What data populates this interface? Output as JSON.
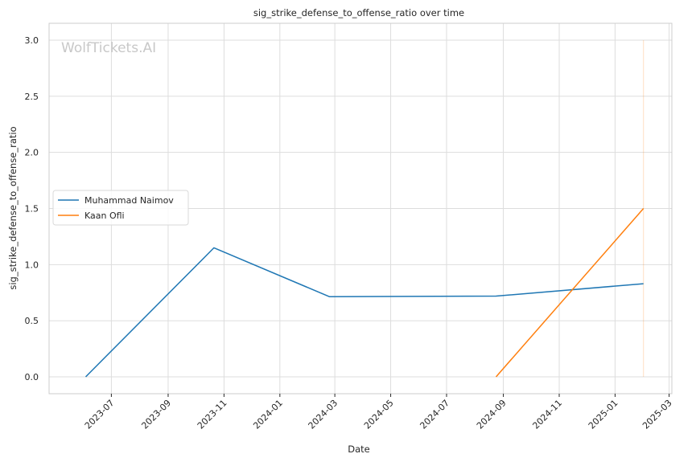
{
  "chart_data": {
    "type": "line",
    "title": "sig_strike_defense_to_offense_ratio over time",
    "xlabel": "Date",
    "ylabel": "sig_strike_defense_to_offense_ratio",
    "watermark": "WolfTickets.AI",
    "xlim": [
      "2023-04-24",
      "2025-03-04"
    ],
    "ylim": [
      -0.15,
      3.15
    ],
    "x_ticks": [
      "2023-07-01",
      "2023-09-01",
      "2023-11-01",
      "2024-01-01",
      "2024-03-01",
      "2024-05-01",
      "2024-07-01",
      "2024-09-01",
      "2024-11-01",
      "2025-01-01",
      "2025-03-01"
    ],
    "x_tick_labels": [
      "2023-07",
      "2023-09",
      "2023-11",
      "2024-01",
      "2024-03",
      "2024-05",
      "2024-07",
      "2024-09",
      "2024-11",
      "2025-01",
      "2025-03"
    ],
    "y_ticks": [
      0.0,
      0.5,
      1.0,
      1.5,
      2.0,
      2.5,
      3.0
    ],
    "y_tick_labels": [
      "0.0",
      "0.5",
      "1.0",
      "1.5",
      "2.0",
      "2.5",
      "3.0"
    ],
    "grid": true,
    "legend_position": "center-left",
    "series": [
      {
        "name": "Muhammad Naimov",
        "color": "#1f77b4",
        "points": [
          {
            "x": "2023-06-03",
            "y": 0.0
          },
          {
            "x": "2023-10-21",
            "y": 1.15
          },
          {
            "x": "2024-02-24",
            "y": 0.715
          },
          {
            "x": "2024-08-24",
            "y": 0.72
          },
          {
            "x": "2025-02-01",
            "y": 0.83
          }
        ]
      },
      {
        "name": "Kaan Ofli",
        "color": "#ff7f0e",
        "points": [
          {
            "x": "2024-08-24",
            "y": 0.0
          },
          {
            "x": "2025-02-01",
            "y": 1.5
          }
        ]
      }
    ],
    "vertical_marker": {
      "x": "2025-02-01",
      "y_range": [
        0.0,
        3.0
      ],
      "color": "#ff7f0e"
    }
  }
}
